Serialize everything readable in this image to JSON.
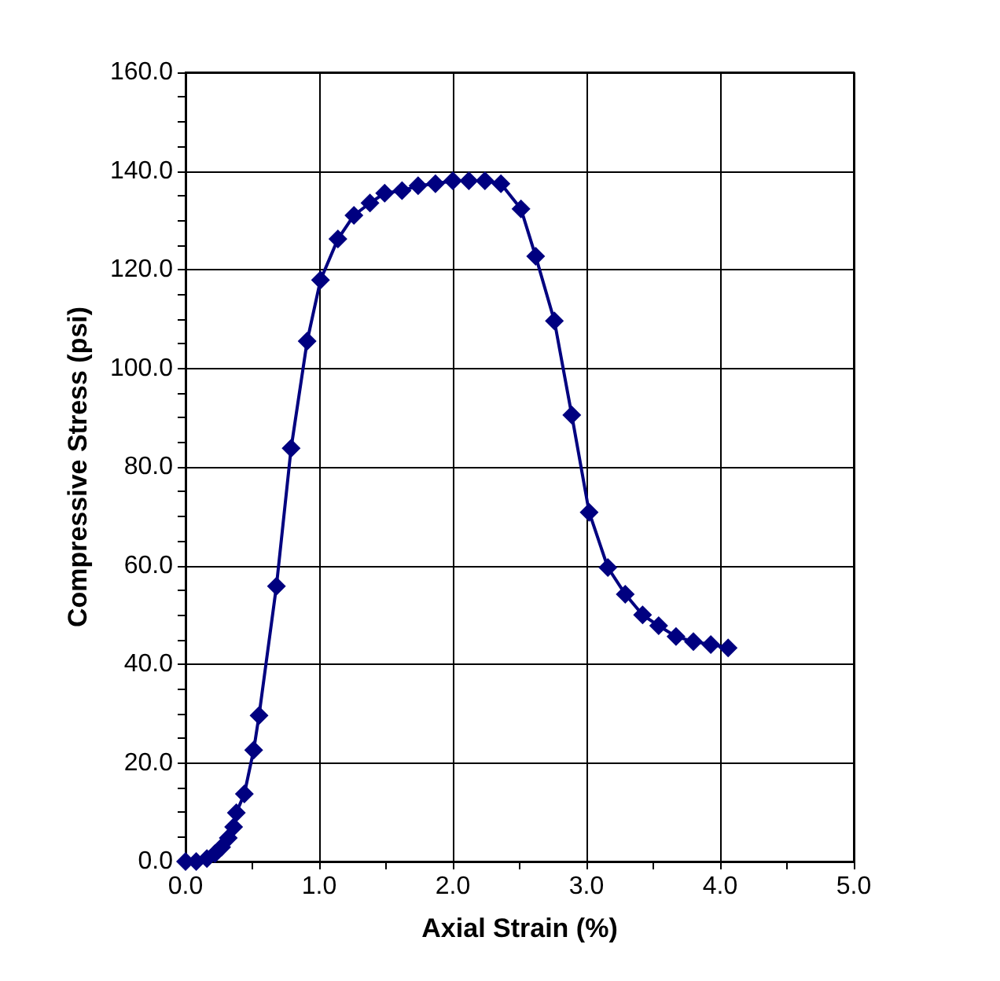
{
  "chart_data": {
    "type": "line",
    "xlabel": "Axial Strain (%)",
    "ylabel": "Compressive Stress (psi)",
    "x": [
      0,
      0.08,
      0.16,
      0.22,
      0.27,
      0.32,
      0.36,
      0.38,
      0.44,
      0.51,
      0.55,
      0.68,
      0.79,
      0.91,
      1.01,
      1.14,
      1.26,
      1.38,
      1.49,
      1.62,
      1.74,
      1.87,
      2.0,
      2.12,
      2.24,
      2.36,
      2.51,
      2.62,
      2.76,
      2.89,
      3.02,
      3.16,
      3.29,
      3.42,
      3.54,
      3.67,
      3.8,
      3.93,
      4.06
    ],
    "series": [
      {
        "color": "#000080",
        "values": [
          0,
          0,
          0.6,
          1.6,
          2.9,
          4.8,
          7,
          9.9,
          13.7,
          22.6,
          29.6,
          55.8,
          83.8,
          105.5,
          117.9,
          126.2,
          131,
          133.5,
          135.5,
          136,
          137,
          137.4,
          138,
          138,
          138,
          137.4,
          132.3,
          122.7,
          109.6,
          90.5,
          70.8,
          59.6,
          54.2,
          50,
          47.8,
          45.6,
          44.6,
          44,
          43.3
        ]
      }
    ],
    "xlim": [
      0,
      5
    ],
    "ylim": [
      0,
      160
    ],
    "xticks": [
      {
        "value": 0,
        "label": "0.0"
      },
      {
        "value": 0.5,
        "label": null
      },
      {
        "value": 1,
        "label": "1.0"
      },
      {
        "value": 1.5,
        "label": null
      },
      {
        "value": 2,
        "label": "2.0"
      },
      {
        "value": 2.5,
        "label": null
      },
      {
        "value": 3,
        "label": "3.0"
      },
      {
        "value": 3.5,
        "label": null
      },
      {
        "value": 4,
        "label": "4.0"
      },
      {
        "value": 4.5,
        "label": null
      },
      {
        "value": 5,
        "label": "5.0"
      }
    ],
    "yticks": [
      {
        "value": 0,
        "label": "0.0"
      },
      {
        "value": 5,
        "label": null
      },
      {
        "value": 10,
        "label": null
      },
      {
        "value": 15,
        "label": null
      },
      {
        "value": 20,
        "label": "20.0"
      },
      {
        "value": 25,
        "label": null
      },
      {
        "value": 30,
        "label": null
      },
      {
        "value": 35,
        "label": null
      },
      {
        "value": 40,
        "label": "40.0"
      },
      {
        "value": 45,
        "label": null
      },
      {
        "value": 50,
        "label": null
      },
      {
        "value": 55,
        "label": null
      },
      {
        "value": 60,
        "label": "60.0"
      },
      {
        "value": 65,
        "label": null
      },
      {
        "value": 70,
        "label": null
      },
      {
        "value": 75,
        "label": null
      },
      {
        "value": 80,
        "label": "80.0"
      },
      {
        "value": 85,
        "label": null
      },
      {
        "value": 90,
        "label": null
      },
      {
        "value": 95,
        "label": null
      },
      {
        "value": 100,
        "label": "100.0"
      },
      {
        "value": 105,
        "label": null
      },
      {
        "value": 110,
        "label": null
      },
      {
        "value": 115,
        "label": null
      },
      {
        "value": 120,
        "label": "120.0"
      },
      {
        "value": 125,
        "label": null
      },
      {
        "value": 130,
        "label": null
      },
      {
        "value": 135,
        "label": null
      },
      {
        "value": 140,
        "label": "140.0"
      },
      {
        "value": 145,
        "label": null
      },
      {
        "value": 150,
        "label": null
      },
      {
        "value": 155,
        "label": null
      },
      {
        "value": 160,
        "label": "160.0"
      }
    ],
    "grid": true,
    "marker": "diamond",
    "line_style": "solid"
  }
}
